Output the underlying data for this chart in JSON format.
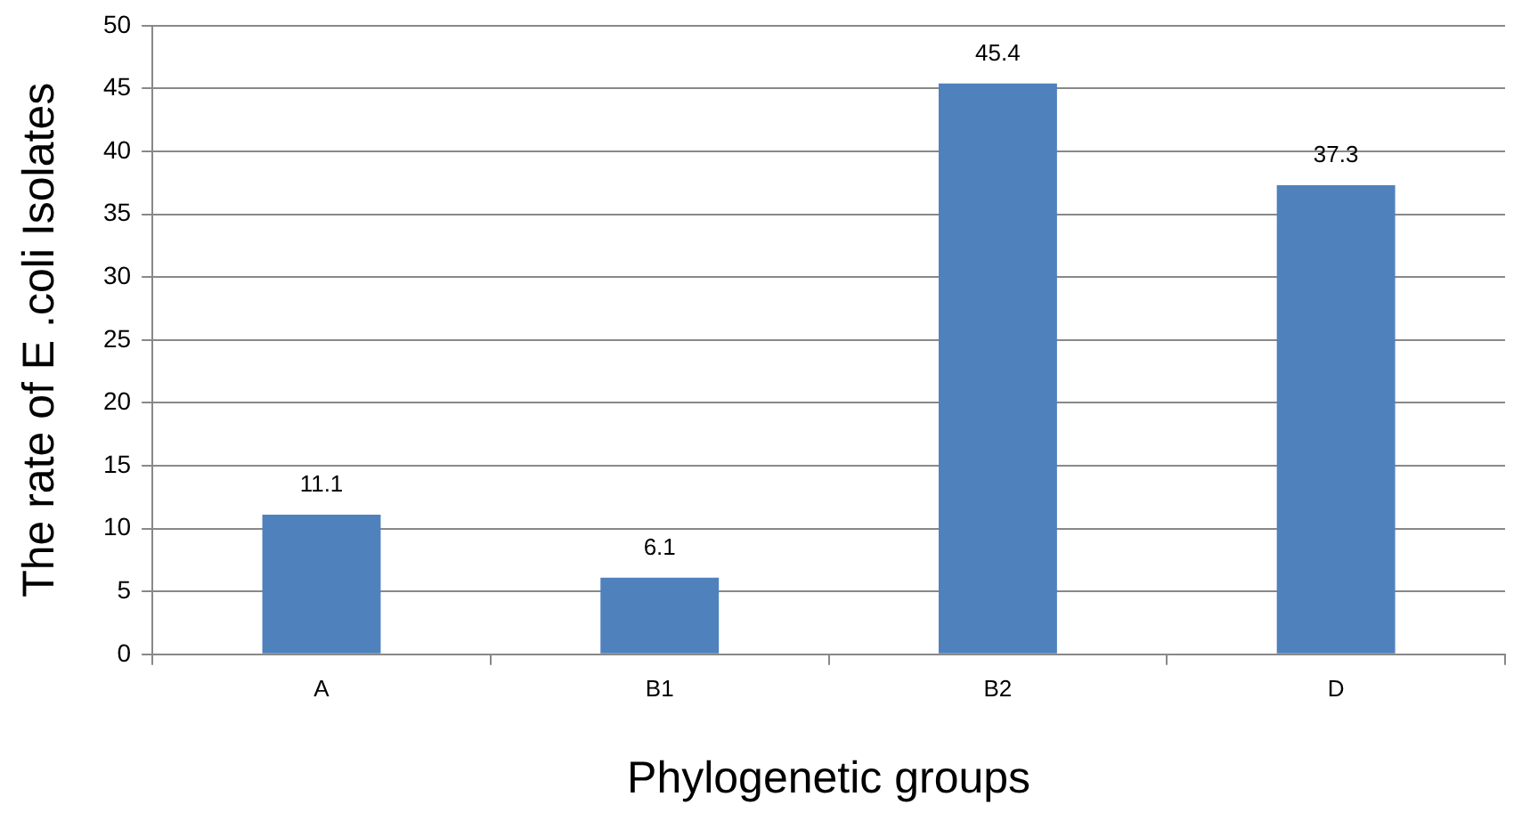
{
  "chart_data": {
    "type": "bar",
    "xlabel": "Phylogenetic groups",
    "ylabel": "The rate of E .coli Isolates",
    "categories": [
      "A",
      "B1",
      "B2",
      "D"
    ],
    "values": [
      11.1,
      6.1,
      45.4,
      37.3
    ],
    "color": "#4f81bd",
    "ylim": [
      0,
      50
    ],
    "yticks": [
      0,
      5,
      10,
      15,
      20,
      25,
      30,
      35,
      40,
      45,
      50
    ],
    "grid": "y",
    "data_labels": true,
    "legend": false
  }
}
